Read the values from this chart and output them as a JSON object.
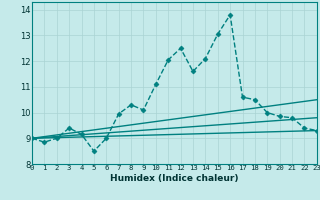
{
  "xlabel": "Humidex (Indice chaleur)",
  "x_ticks": [
    0,
    1,
    2,
    3,
    4,
    5,
    6,
    7,
    8,
    9,
    10,
    11,
    12,
    13,
    14,
    15,
    16,
    17,
    18,
    19,
    20,
    21,
    22,
    23
  ],
  "ylim": [
    8.0,
    14.3
  ],
  "xlim": [
    0,
    23
  ],
  "bg_color": "#c5eaea",
  "line_color": "#008080",
  "grid_color": "#aad4d4",
  "series": [
    {
      "x": [
        0,
        1,
        2,
        3,
        4,
        5,
        6,
        7,
        8,
        9,
        10,
        11,
        12,
        13,
        14,
        15,
        16,
        17,
        18,
        19,
        20,
        21,
        22,
        23
      ],
      "y": [
        9.0,
        8.85,
        9.0,
        9.4,
        9.15,
        8.5,
        9.0,
        9.95,
        10.3,
        10.1,
        11.1,
        12.05,
        12.5,
        11.6,
        12.1,
        13.05,
        13.8,
        10.6,
        10.5,
        10.0,
        9.85,
        9.8,
        9.4,
        9.3
      ],
      "marker": "D",
      "markersize": 2.5,
      "linewidth": 1.0,
      "linestyle": "--"
    },
    {
      "x": [
        0,
        23
      ],
      "y": [
        9.0,
        10.5
      ],
      "marker": "None",
      "markersize": 0,
      "linewidth": 1.0,
      "linestyle": "-"
    },
    {
      "x": [
        0,
        23
      ],
      "y": [
        9.0,
        9.8
      ],
      "marker": "None",
      "markersize": 0,
      "linewidth": 1.0,
      "linestyle": "-"
    },
    {
      "x": [
        0,
        23
      ],
      "y": [
        9.0,
        9.3
      ],
      "marker": "None",
      "markersize": 0,
      "linewidth": 1.0,
      "linestyle": "-"
    }
  ]
}
